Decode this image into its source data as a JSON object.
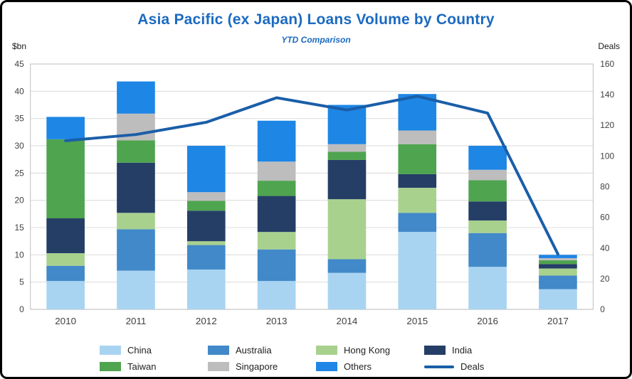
{
  "chart_data": {
    "type": "bar",
    "subtype": "stacked-bar-with-line",
    "title": "Asia Pacific (ex Japan) Loans Volume by Country",
    "subtitle": "YTD Comparison",
    "left_axis_label": "$bn",
    "right_axis_label": "Deals",
    "categories": [
      "2010",
      "2011",
      "2012",
      "2013",
      "2014",
      "2015",
      "2016",
      "2017"
    ],
    "left_ylim": [
      0,
      45
    ],
    "left_tick_step": 5,
    "right_ylim": [
      0,
      160
    ],
    "right_tick_step": 20,
    "grid": true,
    "legend_position": "bottom",
    "series": [
      {
        "name": "China",
        "color": "#A8D4F2",
        "values": [
          5.2,
          7.1,
          7.3,
          5.2,
          6.7,
          14.2,
          7.8,
          3.7
        ]
      },
      {
        "name": "Australia",
        "color": "#4189C9",
        "values": [
          2.8,
          7.6,
          4.5,
          5.8,
          2.5,
          3.5,
          6.2,
          2.5
        ]
      },
      {
        "name": "Hong Kong",
        "color": "#A9D18E",
        "values": [
          2.3,
          3.0,
          0.7,
          3.2,
          11.0,
          4.6,
          2.3,
          1.3
        ]
      },
      {
        "name": "India",
        "color": "#253E66",
        "values": [
          6.4,
          9.2,
          5.6,
          6.6,
          7.2,
          2.5,
          3.5,
          0.8
        ]
      },
      {
        "name": "Taiwan",
        "color": "#4FA44F",
        "values": [
          14.5,
          4.1,
          1.8,
          2.8,
          1.5,
          5.5,
          3.9,
          0.7
        ]
      },
      {
        "name": "Singapore",
        "color": "#BDBDBD",
        "values": [
          0.0,
          4.9,
          1.6,
          3.5,
          1.4,
          2.5,
          1.9,
          0.4
        ]
      },
      {
        "name": "Others",
        "color": "#1E86E5",
        "values": [
          4.1,
          5.9,
          8.5,
          7.5,
          7.2,
          6.7,
          4.4,
          0.6
        ]
      }
    ],
    "line_series": {
      "name": "Deals",
      "color": "#1A5EA8",
      "values": [
        110,
        114,
        122,
        138,
        130,
        139,
        128,
        36
      ]
    },
    "totals_bn": [
      35.3,
      41.8,
      30.0,
      34.6,
      37.5,
      39.5,
      30.0,
      10.0
    ]
  }
}
